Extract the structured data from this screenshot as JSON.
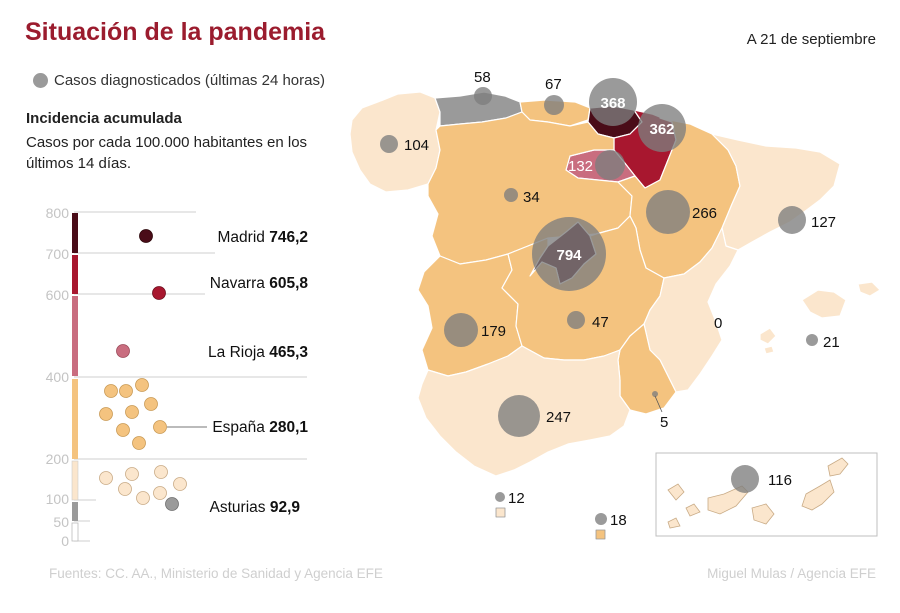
{
  "header": {
    "title": "Situación de la pandemia",
    "date": "A 21 de septiembre"
  },
  "legend": {
    "label": "Casos diagnosticados (últimas 24 horas)"
  },
  "incidence": {
    "title": "Incidencia acumulada",
    "description": "Casos por cada 100.000 habitantes en los últimos 14 días.",
    "scale_ticks": [
      "800",
      "700",
      "600",
      "400",
      "200",
      "100",
      "50",
      "0"
    ],
    "highlights": [
      {
        "name": "Madrid",
        "value": "746,2"
      },
      {
        "name": "Navarra",
        "value": "605,8"
      },
      {
        "name": "La Rioja",
        "value": "465,3"
      },
      {
        "name": "España",
        "value": "280,1"
      },
      {
        "name": "Asturias",
        "value": "92,9"
      }
    ]
  },
  "map": {
    "region_cases": [
      {
        "region": "Galicia",
        "cases": "104"
      },
      {
        "region": "Asturias",
        "cases": "58"
      },
      {
        "region": "Cantabria",
        "cases": "67"
      },
      {
        "region": "País Vasco",
        "cases": "368"
      },
      {
        "region": "Navarra",
        "cases": "362"
      },
      {
        "region": "La Rioja",
        "cases": "132"
      },
      {
        "region": "Castilla y León",
        "cases": "34"
      },
      {
        "region": "Aragón",
        "cases": "266"
      },
      {
        "region": "Cataluña",
        "cases": "127"
      },
      {
        "region": "Madrid",
        "cases": "794"
      },
      {
        "region": "Extremadura",
        "cases": "179"
      },
      {
        "region": "Castilla-La Mancha",
        "cases": "47"
      },
      {
        "region": "Comunidad Valenciana",
        "cases": "0"
      },
      {
        "region": "Baleares",
        "cases": "21"
      },
      {
        "region": "Andalucía",
        "cases": "247"
      },
      {
        "region": "Murcia",
        "cases": "5"
      },
      {
        "region": "Ceuta",
        "cases": "12"
      },
      {
        "region": "Melilla",
        "cases": "18"
      },
      {
        "region": "Canarias",
        "cases": "116"
      }
    ]
  },
  "footer": {
    "sources": "Fuentes: CC. AA., Ministerio de Sanidad y Agencia EFE",
    "credit": "Miguel Mulas / Agencia EFE"
  },
  "colors": {
    "title": "#9b1c2e",
    "madrid": "#4a0c18",
    "navarra": "#a8172f",
    "rioja": "#c96d7f",
    "high": "#f4c37f",
    "low": "#fbe6cd",
    "asturias": "#9a9a9a",
    "bubble": "#7d7d7d"
  }
}
